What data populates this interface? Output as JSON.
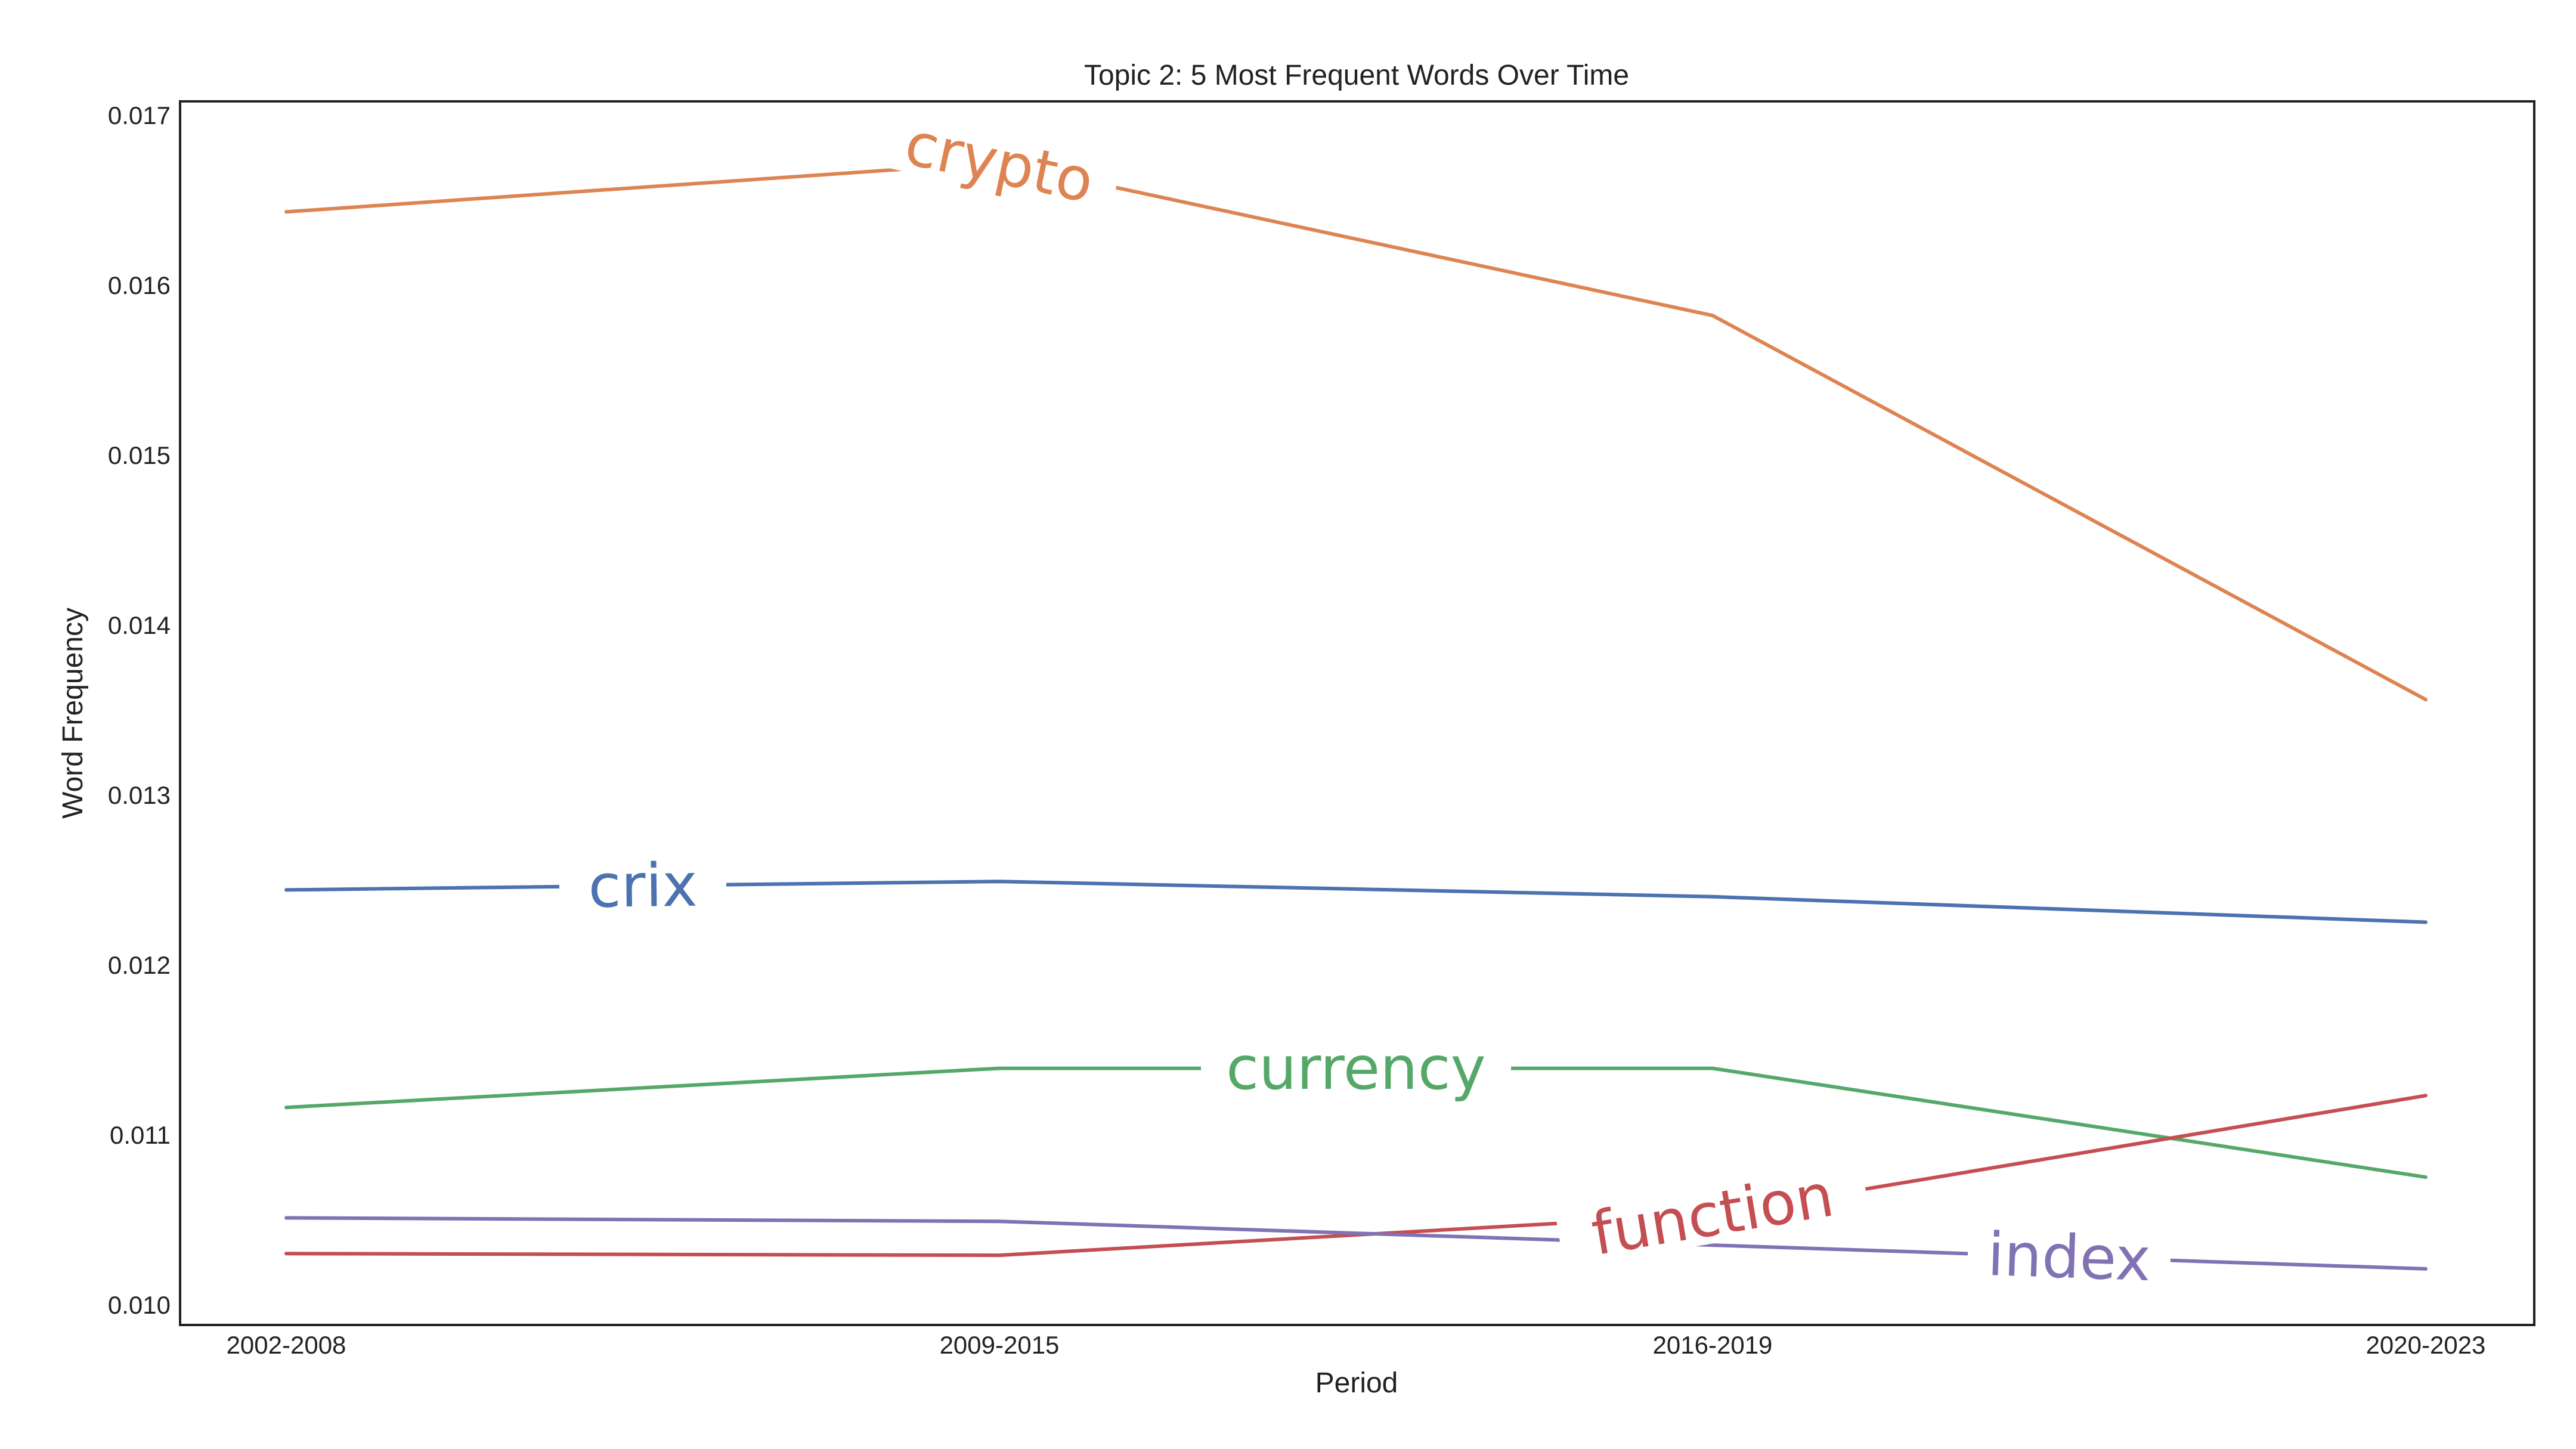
{
  "chart_data": {
    "type": "line",
    "title": "Topic 2: 5 Most Frequent Words Over Time",
    "xlabel": "Period",
    "ylabel": "Word Frequency",
    "categories": [
      "2002-2008",
      "2009-2015",
      "2016-2019",
      "2020-2023"
    ],
    "ylim": [
      0.00988,
      0.01708
    ],
    "yticks": [
      0.01,
      0.011,
      0.012,
      0.013,
      0.014,
      0.015,
      0.016,
      0.017
    ],
    "ytick_labels": [
      "0.010",
      "0.011",
      "0.012",
      "0.013",
      "0.014",
      "0.015",
      "0.016",
      "0.017"
    ],
    "grid": false,
    "legend": "inline labels on lines",
    "series": [
      {
        "name": "crix",
        "color": "#4c72b0",
        "values": [
          0.01244,
          0.01249,
          0.0124,
          0.01225
        ],
        "label_x": 0.5
      },
      {
        "name": "crypto",
        "color": "#dd8452",
        "values": [
          0.01643,
          0.01672,
          0.01582,
          0.01356
        ],
        "label_x": 1.0
      },
      {
        "name": "currency",
        "color": "#55a868",
        "values": [
          0.01116,
          0.01139,
          0.01139,
          0.01075
        ],
        "label_x": 1.5
      },
      {
        "name": "function",
        "color": "#c44e52",
        "values": [
          0.0103,
          0.01029,
          0.01053,
          0.01123
        ],
        "label_x": 2.0
      },
      {
        "name": "index",
        "color": "#8172b3",
        "values": [
          0.01051,
          0.01049,
          0.01035,
          0.01021
        ],
        "label_x": 2.5
      }
    ]
  }
}
